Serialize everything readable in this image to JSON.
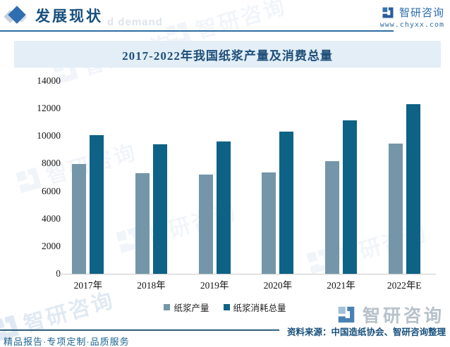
{
  "header": {
    "title": "发展现状",
    "ghost_text": "d demand"
  },
  "brand": {
    "name": "智研咨询",
    "url": "www.chyxx.com"
  },
  "chart_data": {
    "type": "bar",
    "title": "2017-2022年我国纸浆产量及消费总量",
    "categories": [
      "2017年",
      "2018年",
      "2019年",
      "2020年",
      "2021年",
      "2022年E"
    ],
    "series": [
      {
        "name": "纸浆产量",
        "color": "#7496a8",
        "values": [
          7949,
          7301,
          7207,
          7356,
          8177,
          9450
        ]
      },
      {
        "name": "纸浆消耗总量",
        "color": "#0d6286",
        "values": [
          10051,
          9387,
          9609,
          10334,
          11121,
          12310
        ]
      }
    ],
    "ylim": [
      0,
      14000
    ],
    "yticks": [
      0,
      2000,
      4000,
      6000,
      8000,
      10000,
      12000,
      14000
    ],
    "grid": false,
    "legend_position": "bottom"
  },
  "footer": {
    "source": "资料来源：中国造纸协会、智研咨询整理",
    "tagline": "精品报告·专项定制·品质服务"
  },
  "colors": {
    "accent_blue": "#2e6da4",
    "title_band_bg": "#e3eef7",
    "title_text": "#1f4e79",
    "bar_light": "#7496a8",
    "bar_dark": "#0d6286",
    "header_text": "#174f7c"
  }
}
